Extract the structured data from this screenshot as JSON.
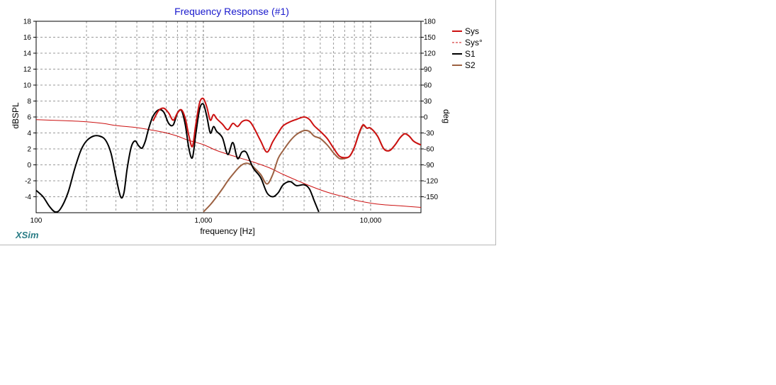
{
  "brand": "XSim",
  "chart_data": {
    "type": "line",
    "title": "Frequency Response (#1)",
    "xlabel": "frequency [Hz]",
    "ylabel": "dBSPL",
    "y2label": "deg",
    "xscale": "log",
    "xlim": [
      100,
      20000
    ],
    "ylim": [
      -6,
      18
    ],
    "y2lim": [
      -180,
      180
    ],
    "x_ticks": [
      100,
      1000,
      10000
    ],
    "x_tick_labels": [
      "100",
      "1,000",
      "10,000"
    ],
    "y_ticks": [
      -4,
      -2,
      0,
      2,
      4,
      6,
      8,
      10,
      12,
      14,
      16,
      18
    ],
    "y_tick_labels": [
      "-4",
      "-2",
      "0",
      "2",
      "4",
      "6",
      "8",
      "10",
      "12",
      "14",
      "16",
      "18"
    ],
    "y2_ticks": [
      -150,
      -120,
      -90,
      -60,
      -30,
      0,
      30,
      60,
      90,
      120,
      150,
      180
    ],
    "y2_tick_labels": [
      "-150",
      "-120",
      "-90",
      "-60",
      "-30",
      "0",
      "30",
      "60",
      "90",
      "120",
      "150",
      "180"
    ],
    "grid": true,
    "legend_position": "top-right",
    "series": [
      {
        "name": "Sys",
        "color": "#cc1111",
        "axis": "left",
        "style": "solid",
        "x": [
          500,
          540,
          580,
          620,
          660,
          700,
          740,
          780,
          820,
          860,
          900,
          950,
          1000,
          1050,
          1100,
          1150,
          1200,
          1300,
          1400,
          1500,
          1600,
          1700,
          1800,
          1900,
          2000,
          2200,
          2400,
          2600,
          2800,
          3000,
          3300,
          3600,
          4000,
          4300,
          4600,
          5000,
          5500,
          6000,
          6500,
          7000,
          7500,
          8000,
          8500,
          9000,
          9500,
          10000,
          11000,
          12000,
          13000,
          14000,
          15000,
          16000,
          17000,
          18000,
          19000,
          20000
        ],
        "y": [
          5.5,
          6.8,
          7.1,
          6.5,
          5.6,
          6.5,
          6.9,
          5.8,
          3.6,
          2.3,
          5.0,
          7.8,
          8.3,
          7.2,
          5.6,
          6.3,
          5.8,
          5.1,
          4.4,
          5.2,
          4.8,
          5.4,
          5.6,
          5.4,
          4.7,
          3.0,
          1.6,
          2.9,
          4.0,
          4.9,
          5.4,
          5.7,
          6.0,
          5.7,
          4.9,
          4.2,
          3.3,
          2.1,
          1.1,
          0.9,
          1.1,
          2.2,
          3.9,
          5.0,
          4.6,
          4.6,
          3.6,
          2.0,
          1.8,
          2.5,
          3.4,
          3.9,
          3.6,
          3.0,
          2.7,
          2.5
        ]
      },
      {
        "name": "Sys°",
        "color": "#cc1111",
        "axis": "right",
        "style": "dashed",
        "x": [
          100,
          150,
          200,
          250,
          300,
          400,
          500,
          600,
          700,
          800,
          1000,
          1200,
          1500,
          2000,
          2500,
          3000,
          4000,
          5000,
          6000,
          7000,
          8000,
          10000,
          12000,
          15000,
          20000
        ],
        "y": [
          -5,
          -7,
          -9,
          -12,
          -16,
          -20,
          -25,
          -30,
          -36,
          -43,
          -52,
          -63,
          -73,
          -85,
          -96,
          -108,
          -125,
          -137,
          -145,
          -150,
          -156,
          -162,
          -165,
          -167,
          -170
        ]
      },
      {
        "name": "S1",
        "color": "#000000",
        "axis": "left",
        "style": "solid",
        "x": [
          100,
          110,
          120,
          130,
          140,
          155,
          170,
          185,
          200,
          220,
          240,
          260,
          280,
          300,
          320,
          335,
          350,
          370,
          390,
          410,
          430,
          450,
          470,
          500,
          540,
          580,
          620,
          660,
          700,
          740,
          780,
          820,
          860,
          900,
          950,
          1000,
          1050,
          1100,
          1150,
          1200,
          1300,
          1400,
          1500,
          1600,
          1700,
          1800,
          1900,
          2000,
          2200,
          2400,
          2600,
          2800,
          3000,
          3300,
          3600,
          4000,
          4300,
          4600,
          4900
        ],
        "y": [
          -3.2,
          -4.0,
          -5.2,
          -5.9,
          -5.5,
          -3.5,
          -0.5,
          1.8,
          3.0,
          3.6,
          3.6,
          3.1,
          1.5,
          -1.5,
          -4.0,
          -3.5,
          -0.5,
          2.2,
          3.0,
          2.4,
          2.1,
          3.0,
          4.5,
          6.1,
          6.9,
          6.6,
          5.2,
          5.0,
          6.5,
          6.8,
          5.0,
          2.0,
          0.9,
          3.8,
          7.0,
          7.6,
          6.0,
          4.0,
          4.8,
          4.2,
          3.4,
          1.3,
          2.8,
          0.8,
          1.6,
          1.6,
          0.5,
          -0.5,
          -1.6,
          -3.5,
          -4.0,
          -3.5,
          -2.5,
          -2.1,
          -2.6,
          -2.5,
          -3.0,
          -4.5,
          -5.9
        ]
      },
      {
        "name": "S2",
        "color": "#9c6142",
        "axis": "left",
        "style": "solid",
        "x": [
          1000,
          1100,
          1200,
          1300,
          1400,
          1500,
          1600,
          1700,
          1800,
          1900,
          2000,
          2200,
          2400,
          2600,
          2800,
          3000,
          3300,
          3600,
          4000,
          4300,
          4600,
          5000,
          5500,
          6000,
          6500,
          7000,
          7500,
          8000,
          8500,
          9000,
          9500,
          10000,
          11000,
          12000,
          13000,
          14000,
          15000,
          16000,
          17000,
          18000,
          19000,
          20000
        ],
        "y": [
          -5.9,
          -5.0,
          -4.0,
          -3.0,
          -2.0,
          -1.2,
          -0.5,
          0.0,
          0.2,
          0.1,
          -0.3,
          -1.2,
          -2.4,
          -1.2,
          0.8,
          1.8,
          3.0,
          3.8,
          4.3,
          4.2,
          3.6,
          3.3,
          2.5,
          1.5,
          0.8,
          0.8,
          1.1,
          2.2,
          3.8,
          4.9,
          4.6,
          4.6,
          3.6,
          2.0,
          1.8,
          2.5,
          3.4,
          3.9,
          3.6,
          3.0,
          2.7,
          2.5
        ]
      }
    ]
  }
}
